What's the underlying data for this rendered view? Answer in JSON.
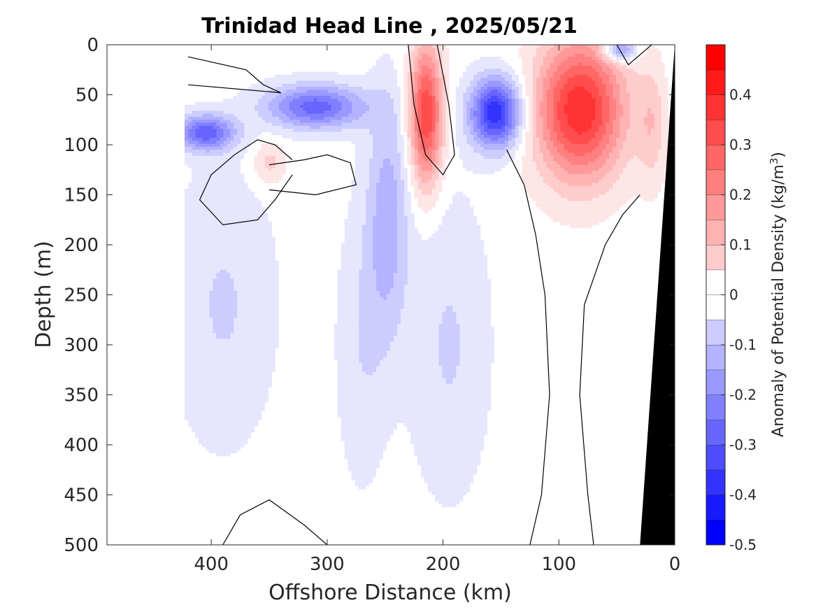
{
  "chart_data": {
    "type": "heatmap",
    "title": "Trinidad Head Line , 2025/05/21",
    "xlabel": "Offshore Distance (km)",
    "ylabel": "Depth (m)",
    "xlim": [
      490,
      0
    ],
    "ylim": [
      0,
      500
    ],
    "x_reversed": true,
    "y_reversed": true,
    "x_ticks": [
      "400",
      "300",
      "200",
      "100",
      "0"
    ],
    "y_ticks": [
      "0",
      "50",
      "100",
      "150",
      "200",
      "250",
      "300",
      "350",
      "400",
      "450",
      "500"
    ],
    "colorbar": {
      "label": "Anomaly of Potential Density (kg/m",
      "label_superscript": "3",
      "label_close": ")",
      "range": [
        -0.5,
        0.5
      ],
      "step": 0.05,
      "tick_labels": [
        "0.4",
        "0.3",
        "0.2",
        "0.1",
        "0",
        "-0.1",
        "-0.2",
        "-0.3",
        "-0.4",
        "-0.5"
      ],
      "tick_values": [
        0.4,
        0.3,
        0.2,
        0.1,
        0,
        -0.1,
        -0.2,
        -0.3,
        -0.4,
        -0.5
      ],
      "negative_color": "#0000ff",
      "positive_color": "#ff0000"
    },
    "data_extent_km": [
      0,
      420
    ],
    "features": [
      {
        "name": "positive-core-offshore-80km",
        "distance_km": 82,
        "depth_m": 65,
        "peak_value": 0.42,
        "spread_km": 38,
        "spread_m": 70
      },
      {
        "name": "positive-core-200km",
        "distance_km": 215,
        "depth_m": 70,
        "peak_value": 0.38,
        "spread_km": 14,
        "spread_m": 70
      },
      {
        "name": "positive-patch-350km",
        "distance_km": 350,
        "depth_m": 118,
        "peak_value": 0.1,
        "spread_km": 14,
        "spread_m": 22
      },
      {
        "name": "positive-nearshore-surface",
        "distance_km": 20,
        "depth_m": 80,
        "peak_value": 0.1,
        "spread_km": 12,
        "spread_m": 60
      },
      {
        "name": "negative-core-155km",
        "distance_km": 155,
        "depth_m": 68,
        "peak_value": -0.42,
        "spread_km": 22,
        "spread_m": 35
      },
      {
        "name": "negative-core-310km",
        "distance_km": 310,
        "depth_m": 62,
        "peak_value": -0.3,
        "spread_km": 42,
        "spread_m": 22
      },
      {
        "name": "negative-core-410km",
        "distance_km": 405,
        "depth_m": 88,
        "peak_value": -0.3,
        "spread_km": 25,
        "spread_m": 18
      },
      {
        "name": "negative-surface-45km",
        "distance_km": 48,
        "depth_m": 5,
        "peak_value": -0.25,
        "spread_km": 14,
        "spread_m": 12
      },
      {
        "name": "negative-column-250km",
        "distance_km": 248,
        "depth_m": 170,
        "peak_value": -0.15,
        "spread_km": 18,
        "spread_m": 120
      },
      {
        "name": "negative-deep-column-390km",
        "distance_km": 390,
        "depth_m": 260,
        "peak_value": -0.08,
        "spread_km": 45,
        "spread_m": 140
      },
      {
        "name": "negative-deep-column-195km",
        "distance_km": 195,
        "depth_m": 300,
        "peak_value": -0.08,
        "spread_km": 35,
        "spread_m": 150
      },
      {
        "name": "negative-deep-column-270km",
        "distance_km": 270,
        "depth_m": 300,
        "peak_value": -0.07,
        "spread_km": 22,
        "spread_m": 140
      }
    ],
    "zero_contours_km_m": [
      [
        [
          420,
          12
        ],
        [
          370,
          25
        ],
        [
          355,
          40
        ],
        [
          340,
          48
        ],
        [
          420,
          40
        ]
      ],
      [
        [
          330,
          115
        ],
        [
          345,
          100
        ],
        [
          360,
          95
        ],
        [
          380,
          110
        ],
        [
          400,
          130
        ],
        [
          410,
          155
        ],
        [
          390,
          180
        ],
        [
          360,
          175
        ],
        [
          345,
          155
        ],
        [
          330,
          130
        ]
      ],
      [
        [
          350,
          120
        ],
        [
          320,
          115
        ],
        [
          300,
          110
        ],
        [
          280,
          118
        ],
        [
          275,
          140
        ],
        [
          310,
          150
        ],
        [
          350,
          145
        ]
      ],
      [
        [
          230,
          0
        ],
        [
          225,
          60
        ],
        [
          215,
          110
        ],
        [
          200,
          130
        ],
        [
          190,
          110
        ],
        [
          195,
          60
        ],
        [
          205,
          0
        ]
      ],
      [
        [
          145,
          105
        ],
        [
          130,
          140
        ],
        [
          120,
          190
        ],
        [
          112,
          250
        ],
        [
          108,
          350
        ],
        [
          115,
          450
        ],
        [
          125,
          500
        ]
      ],
      [
        [
          50,
          0
        ],
        [
          40,
          20
        ],
        [
          20,
          0
        ]
      ],
      [
        [
          30,
          150
        ],
        [
          45,
          170
        ],
        [
          60,
          200
        ],
        [
          78,
          260
        ],
        [
          82,
          350
        ],
        [
          75,
          450
        ],
        [
          70,
          500
        ]
      ],
      [
        [
          390,
          500
        ],
        [
          375,
          470
        ],
        [
          350,
          455
        ],
        [
          320,
          480
        ],
        [
          300,
          500
        ]
      ]
    ],
    "land_mask": {
      "surface_km": 0,
      "bottom_km": 30,
      "color": "#000000"
    }
  }
}
